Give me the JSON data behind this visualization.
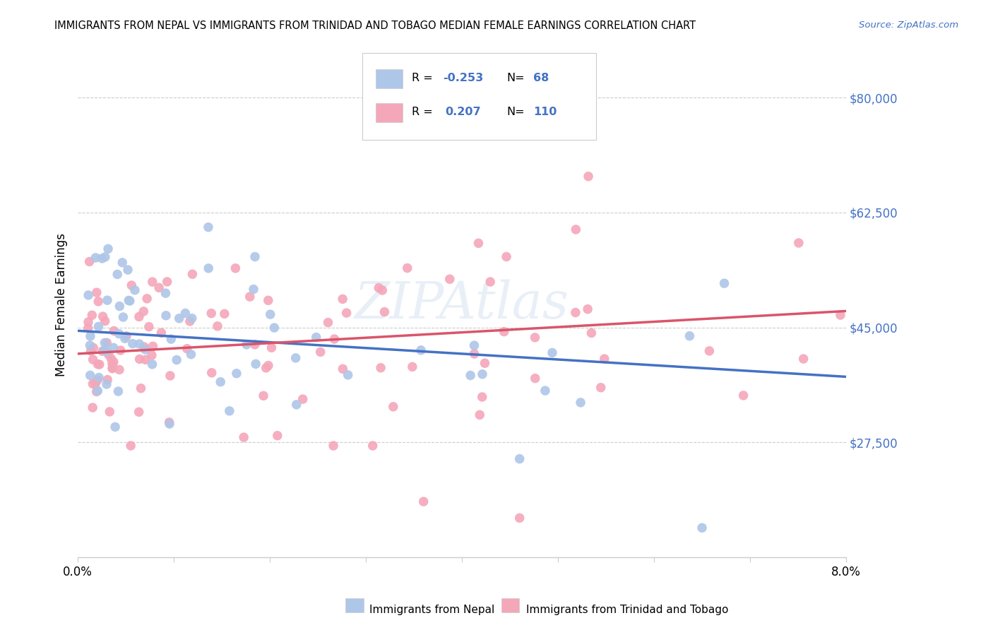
{
  "title": "IMMIGRANTS FROM NEPAL VS IMMIGRANTS FROM TRINIDAD AND TOBAGO MEDIAN FEMALE EARNINGS CORRELATION CHART",
  "source": "Source: ZipAtlas.com",
  "ylabel": "Median Female Earnings",
  "xlim": [
    0.0,
    0.08
  ],
  "ylim": [
    10000,
    87000
  ],
  "yticks": [
    27500,
    45000,
    62500,
    80000
  ],
  "ytick_labels": [
    "$27,500",
    "$45,000",
    "$62,500",
    "$80,000"
  ],
  "xtick_positions": [
    0.0,
    0.01,
    0.02,
    0.03,
    0.04,
    0.05,
    0.06,
    0.07,
    0.08
  ],
  "nepal_color": "#aec6e8",
  "nepal_line_color": "#4472c4",
  "tt_color": "#f4a7b9",
  "tt_line_color": "#d9556b",
  "nepal_R": -0.253,
  "nepal_N": 68,
  "tt_R": 0.207,
  "tt_N": 110,
  "watermark": "ZIPAtlas",
  "accent_color": "#4472c4",
  "background": "#ffffff",
  "grid_color": "#cccccc",
  "legend_R_color": "#4472c4",
  "nepal_line_y0": 44500,
  "nepal_line_y1": 37500,
  "tt_line_y0": 41000,
  "tt_line_y1": 47500
}
